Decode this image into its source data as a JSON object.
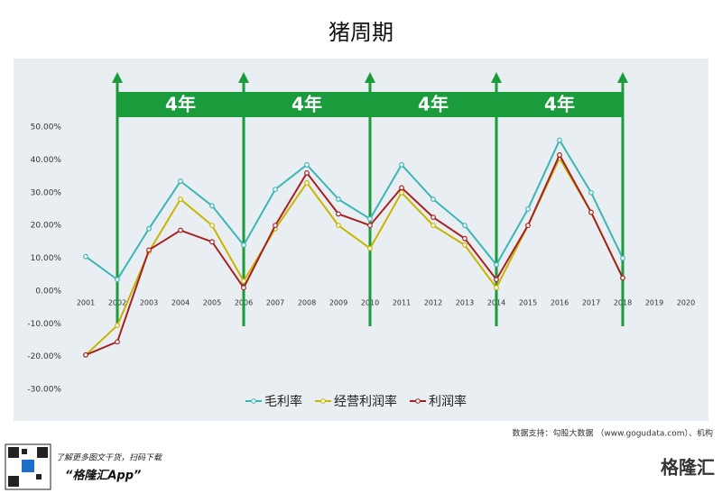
{
  "chart_data": {
    "type": "line",
    "title": "猪周期",
    "categories": [
      "2001",
      "2002",
      "2003",
      "2004",
      "2005",
      "2006",
      "2007",
      "2008",
      "2009",
      "2010",
      "2011",
      "2012",
      "2013",
      "2014",
      "2015",
      "2016",
      "2017",
      "2018",
      "2019",
      "2020"
    ],
    "series": [
      {
        "name": "毛利率",
        "color": "#3bb5b5",
        "values": [
          10.5,
          3.5,
          19,
          33.5,
          26,
          14,
          31,
          38.5,
          28,
          22,
          38.5,
          28,
          20,
          8,
          25,
          46,
          30,
          10,
          null,
          null
        ]
      },
      {
        "name": "经营利润率",
        "color": "#c9b400",
        "values": [
          -19.5,
          -10.5,
          12,
          28,
          20,
          3,
          19,
          33,
          20,
          13,
          30,
          20,
          14,
          1,
          20,
          40.5,
          24,
          4,
          null,
          null
        ]
      },
      {
        "name": "利润率",
        "color": "#a52222",
        "values": [
          -19.5,
          -15.5,
          12.5,
          18.5,
          15,
          1,
          20,
          36,
          23.5,
          20,
          31.5,
          22.5,
          16,
          3.5,
          20,
          41.5,
          24,
          4,
          null,
          null
        ]
      }
    ],
    "ylim": [
      -30,
      50
    ],
    "yticks": [
      {
        "value": -30,
        "label": "-30.00%"
      },
      {
        "value": -20,
        "label": "-20.00%"
      },
      {
        "value": -10,
        "label": "-10.00%"
      },
      {
        "value": 0,
        "label": "0.00%"
      },
      {
        "value": 10,
        "label": "10.00%"
      },
      {
        "value": 20,
        "label": "20.00%"
      },
      {
        "value": 30,
        "label": "30.00%"
      },
      {
        "value": 40,
        "label": "40.00%"
      },
      {
        "value": 50,
        "label": "50.00%"
      }
    ],
    "annotations": [
      {
        "text": "4年",
        "from": "2002",
        "to": "2006"
      },
      {
        "text": "4年",
        "from": "2006",
        "to": "2010"
      },
      {
        "text": "4年",
        "from": "2010",
        "to": "2014"
      },
      {
        "text": "4年",
        "from": "2014",
        "to": "2018"
      }
    ],
    "legend": "bottom",
    "source": "数据支持：勾股大数据 （www.gogudata.com）、机构"
  },
  "footer": {
    "note": "了解更多图文干货，扫码下载",
    "app": "“格隆汇App”",
    "brand": "格隆汇"
  }
}
